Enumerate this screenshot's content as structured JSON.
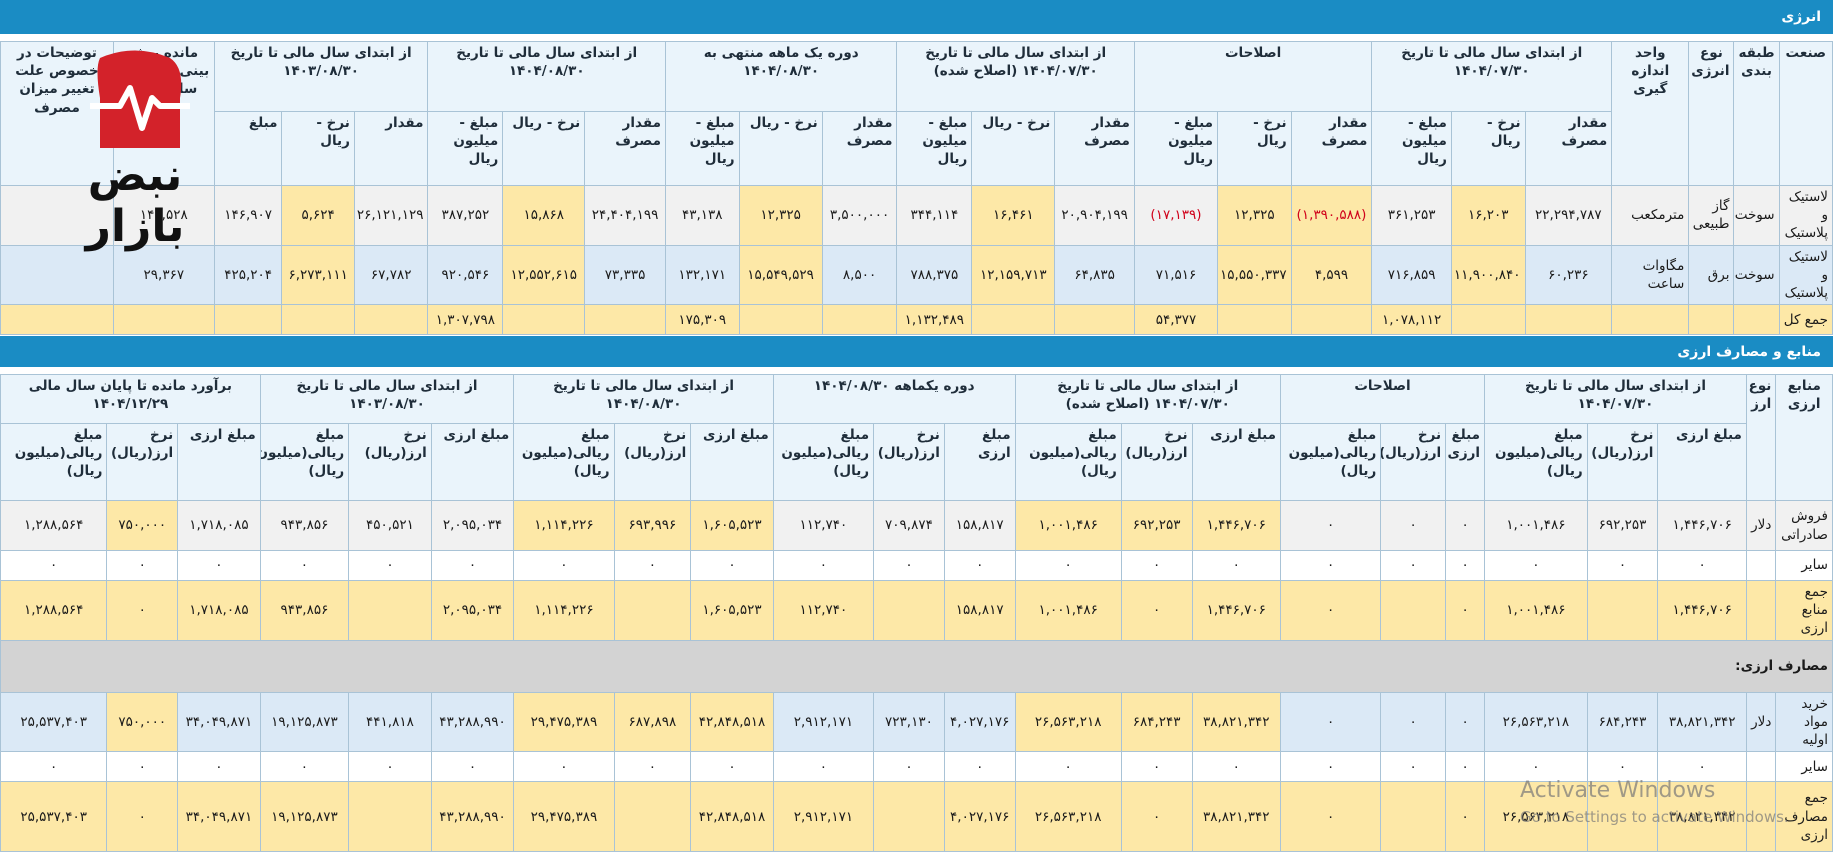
{
  "energy": {
    "title": "انرژی",
    "fixed_headers": [
      "صنعت",
      "طبقه بندی",
      "نوع انرژی",
      "واحد اندازه گیری"
    ],
    "groups": [
      {
        "title": "از ابتدای سال مالی تا تاریخ ۱۴۰۴/۰۷/۳۰",
        "columns": [
          "مقدار مصرف",
          "نرخ - ریال",
          "مبلغ - میلیون ریال"
        ]
      },
      {
        "title": "اصلاحات",
        "columns": [
          "مقدار مصرف",
          "نرخ - ریال",
          "مبلغ - میلیون ریال"
        ]
      },
      {
        "title": "از ابتدای سال مالی تا تاریخ ۱۴۰۴/۰۷/۳۰ (اصلاح شده)",
        "columns": [
          "مقدار مصرف",
          "نرخ - ریال",
          "مبلغ - میلیون ریال"
        ]
      },
      {
        "title": "دوره یک ماهه منتهی به ۱۴۰۴/۰۸/۳۰",
        "columns": [
          "مقدار مصرف",
          "نرخ - ریال",
          "مبلغ - میلیون ریال"
        ]
      },
      {
        "title": "از ابتدای سال مالی تا تاریخ ۱۴۰۴/۰۸/۳۰",
        "columns": [
          "مقدار مصرف",
          "نرخ - ریال",
          "مبلغ - میلیون ریال"
        ]
      },
      {
        "title": "از ابتدای سال مالی تا تاریخ ۱۴۰۳/۰۸/۳۰",
        "columns": [
          "مقدار",
          "نرخ - ریال",
          "مبلغ"
        ]
      }
    ],
    "trailing_headers": [
      "مانده پیش بینی تا انتهای سال مالی",
      "توضیحات در خصوص علت تغییر میزان مصرف"
    ],
    "rows": [
      [
        "لاستیک و پلاستیک",
        "سوخت",
        "گاز طبیعی",
        "مترمکعب",
        "۲۲,۲۹۴,۷۸۷",
        "۱۶,۲۰۳",
        "۳۶۱,۲۵۳",
        "(۱,۳۹۰,۵۸۸)",
        "۱۲,۳۲۵",
        "(۱۷,۱۳۹)",
        "۲۰,۹۰۴,۱۹۹",
        "۱۶,۴۶۱",
        "۳۴۴,۱۱۴",
        "۳,۵۰۰,۰۰۰",
        "۱۲,۳۲۵",
        "۴۳,۱۳۸",
        "۲۴,۴۰۴,۱۹۹",
        "۱۵,۸۶۸",
        "۳۸۷,۲۵۲",
        "۲۶,۱۲۱,۱۲۹",
        "۵,۶۲۴",
        "۱۴۶,۹۰۷",
        "۱۴۰,۵۲۸",
        null
      ],
      [
        "لاستیک و پلاستیک",
        "سوخت",
        "برق",
        "مگاوات ساعت",
        "۶۰,۲۳۶",
        "۱۱,۹۰۰,۸۴۰",
        "۷۱۶,۸۵۹",
        "۴,۵۹۹",
        "۱۵,۵۵۰,۳۳۷",
        "۷۱,۵۱۶",
        "۶۴,۸۳۵",
        "۱۲,۱۵۹,۷۱۳",
        "۷۸۸,۳۷۵",
        "۸,۵۰۰",
        "۱۵,۵۴۹,۵۲۹",
        "۱۳۲,۱۷۱",
        "۷۳,۳۳۵",
        "۱۲,۵۵۲,۶۱۵",
        "۹۲۰,۵۴۶",
        "۶۷,۷۸۲",
        "۶,۲۷۳,۱۱۱",
        "۴۲۵,۲۰۴",
        "۲۹,۳۶۷",
        null
      ],
      [
        "جمع کل",
        null,
        null,
        null,
        null,
        null,
        "۱,۰۷۸,۱۱۲",
        null,
        null,
        "۵۴,۳۷۷",
        null,
        null,
        "۱,۱۳۲,۴۸۹",
        null,
        null,
        "۱۷۵,۳۰۹",
        null,
        null,
        "۱,۳۰۷,۷۹۸",
        null,
        null,
        null,
        null,
        null
      ]
    ]
  },
  "currency": {
    "title": "منابع و مصارف ارزی",
    "fixed_headers": [
      "منابع ارزی",
      "نوع ارز"
    ],
    "groups": [
      {
        "title": "از ابتدای سال مالی تا تاریخ ۱۴۰۴/۰۷/۳۰",
        "columns": [
          "مبلغ ارزی",
          "نرخ ارز(ریال)",
          "مبلغ ریالی(میلیون ریال)"
        ]
      },
      {
        "title": "اصلاحات",
        "columns": [
          "مبلغ ارزی",
          "نرخ ارز(ریال)",
          "مبلغ ریالی(میلیون ریال)"
        ]
      },
      {
        "title": "از ابتدای سال مالی تا تاریخ ۱۴۰۴/۰۷/۳۰ (اصلاح شده)",
        "columns": [
          "مبلغ ارزی",
          "نرخ ارز(ریال)",
          "مبلغ ریالی(میلیون ریال)"
        ]
      },
      {
        "title": "دوره یکماهه ۱۴۰۴/۰۸/۳۰",
        "columns": [
          "مبلغ ارزی",
          "نرخ ارز(ریال)",
          "مبلغ ریالی(میلیون ریال)"
        ]
      },
      {
        "title": "از ابتدای سال مالی تا تاریخ ۱۴۰۴/۰۸/۳۰",
        "columns": [
          "مبلغ ارزی",
          "نرخ ارز(ریال)",
          "مبلغ ریالی(میلیون ریال)"
        ]
      },
      {
        "title": "از ابتدای سال مالی تا تاریخ ۱۴۰۳/۰۸/۳۰",
        "columns": [
          "مبلغ ارزی",
          "نرخ ارز(ریال)",
          "مبلغ ریالی(میلیون ریال)"
        ]
      },
      {
        "title": "برآورد مانده تا پایان سال مالی ۱۴۰۴/۱۲/۲۹",
        "columns": [
          "مبلغ ارزی",
          "نرخ ارز(ریال)",
          "مبلغ ریالی(میلیون ریال)"
        ]
      }
    ],
    "rows": [
      [
        "فروش صادراتی",
        "دلار",
        "۱,۴۴۶,۷۰۶",
        "۶۹۲,۲۵۳",
        "۱,۰۰۱,۴۸۶",
        "۰",
        "۰",
        "۰",
        "۱,۴۴۶,۷۰۶",
        "۶۹۲,۲۵۳",
        "۱,۰۰۱,۴۸۶",
        "۱۵۸,۸۱۷",
        "۷۰۹,۸۷۴",
        "۱۱۲,۷۴۰",
        "۱,۶۰۵,۵۲۳",
        "۶۹۳,۹۹۶",
        "۱,۱۱۴,۲۲۶",
        "۲,۰۹۵,۰۳۴",
        "۴۵۰,۵۲۱",
        "۹۴۳,۸۵۶",
        "۱,۷۱۸,۰۸۵",
        "۷۵۰,۰۰۰",
        "۱,۲۸۸,۵۶۴"
      ],
      [
        "سایر",
        null,
        "۰",
        "۰",
        "۰",
        "۰",
        "۰",
        "۰",
        "۰",
        "۰",
        "۰",
        "۰",
        "۰",
        "۰",
        "۰",
        "۰",
        "۰",
        "۰",
        "۰",
        "۰",
        "۰",
        "۰",
        "۰"
      ],
      [
        "جمع منابع ارزی",
        null,
        "۱,۴۴۶,۷۰۶",
        null,
        "۱,۰۰۱,۴۸۶",
        "۰",
        null,
        "۰",
        "۱,۴۴۶,۷۰۶",
        "۰",
        "۱,۰۰۱,۴۸۶",
        "۱۵۸,۸۱۷",
        null,
        "۱۱۲,۷۴۰",
        "۱,۶۰۵,۵۲۳",
        null,
        "۱,۱۱۴,۲۲۶",
        "۲,۰۹۵,۰۳۴",
        null,
        "۹۴۳,۸۵۶",
        "۱,۷۱۸,۰۸۵",
        "۰",
        "۱,۲۸۸,۵۶۴"
      ],
      [
        "مصارف ارزی:"
      ],
      [
        "خرید مواد اولیه",
        "دلار",
        "۳۸,۸۲۱,۳۴۲",
        "۶۸۴,۲۴۳",
        "۲۶,۵۶۳,۲۱۸",
        "۰",
        "۰",
        "۰",
        "۳۸,۸۲۱,۳۴۲",
        "۶۸۴,۲۴۳",
        "۲۶,۵۶۳,۲۱۸",
        "۴,۰۲۷,۱۷۶",
        "۷۲۳,۱۳۰",
        "۲,۹۱۲,۱۷۱",
        "۴۲,۸۴۸,۵۱۸",
        "۶۸۷,۸۹۸",
        "۲۹,۴۷۵,۳۸۹",
        "۴۳,۲۸۸,۹۹۰",
        "۴۴۱,۸۱۸",
        "۱۹,۱۲۵,۸۷۳",
        "۳۴,۰۴۹,۸۷۱",
        "۷۵۰,۰۰۰",
        "۲۵,۵۳۷,۴۰۳"
      ],
      [
        "سایر",
        null,
        "۰",
        "۰",
        "۰",
        "۰",
        "۰",
        "۰",
        "۰",
        "۰",
        "۰",
        "۰",
        "۰",
        "۰",
        "۰",
        "۰",
        "۰",
        "۰",
        "۰",
        "۰",
        "۰",
        "۰",
        "۰"
      ],
      [
        "جمع مصارف ارزی",
        null,
        "۳۸,۸۲۱,۳۴۲",
        null,
        "۲۶,۵۶۳,۲۱۸",
        "۰",
        null,
        "۰",
        "۳۸,۸۲۱,۳۴۲",
        "۰",
        "۲۶,۵۶۳,۲۱۸",
        "۴,۰۲۷,۱۷۶",
        null,
        "۲,۹۱۲,۱۷۱",
        "۴۲,۸۴۸,۵۱۸",
        null,
        "۲۹,۴۷۵,۳۸۹",
        "۴۳,۲۸۸,۹۹۰",
        null,
        "۱۹,۱۲۵,۸۷۳",
        "۳۴,۰۴۹,۸۷۱",
        "۰",
        "۲۵,۵۳۷,۴۰۳"
      ]
    ]
  },
  "logo": {
    "text": "نبض بازار"
  },
  "watermark": {
    "title": "Activate Windows",
    "subtitle": "Go to Settings to activate Windows."
  }
}
